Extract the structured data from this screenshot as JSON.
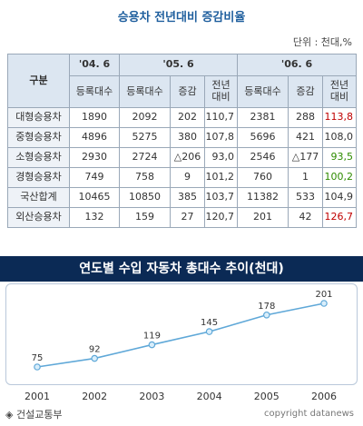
{
  "title": "승용차 전년대비 증감비율",
  "unit": "단위 : 천대,%",
  "table": {
    "corner": "구분",
    "years": [
      "'04. 6",
      "'05. 6",
      "'06. 6"
    ],
    "subheaders": [
      "등록대수",
      "등록대수",
      "증감",
      "전년\n대비",
      "등록대수",
      "증감",
      "전년\n대비"
    ],
    "rows": [
      {
        "label": "대형승용차",
        "cells": [
          "1890",
          "2092",
          "202",
          "110,7",
          "2381",
          "288",
          "113,8"
        ],
        "last_color": "red"
      },
      {
        "label": "중형승용차",
        "cells": [
          "4896",
          "5275",
          "380",
          "107,8",
          "5696",
          "421",
          "108,0"
        ],
        "last_color": ""
      },
      {
        "label": "소형승용차",
        "cells": [
          "2930",
          "2724",
          "△206",
          "93,0",
          "2546",
          "△177",
          "93,5"
        ],
        "last_color": "green"
      },
      {
        "label": "경형승용차",
        "cells": [
          "749",
          "758",
          "9",
          "101,2",
          "760",
          "1",
          "100,2"
        ],
        "last_color": "green"
      },
      {
        "label": "국산합계",
        "cells": [
          "10465",
          "10850",
          "385",
          "103,7",
          "11382",
          "533",
          "104,9"
        ],
        "last_color": ""
      },
      {
        "label": "외산승용차",
        "cells": [
          "132",
          "159",
          "27",
          "120,7",
          "201",
          "42",
          "126,7"
        ],
        "last_color": "red"
      }
    ]
  },
  "banner": "연도별 수입 자동차 총대수 추이(천대)",
  "chart_data": {
    "type": "line",
    "x": [
      "2001",
      "2002",
      "2003",
      "2004",
      "2005",
      "2006"
    ],
    "values": [
      75,
      92,
      119,
      145,
      178,
      201
    ],
    "data_labels": [
      "75",
      "92",
      "119",
      "145",
      "178",
      "201"
    ],
    "line_color": "#5fa8d8",
    "marker_fill": "#d9eefb"
  },
  "source": "◈ 건설교통부",
  "copyright": "copyright datanews"
}
